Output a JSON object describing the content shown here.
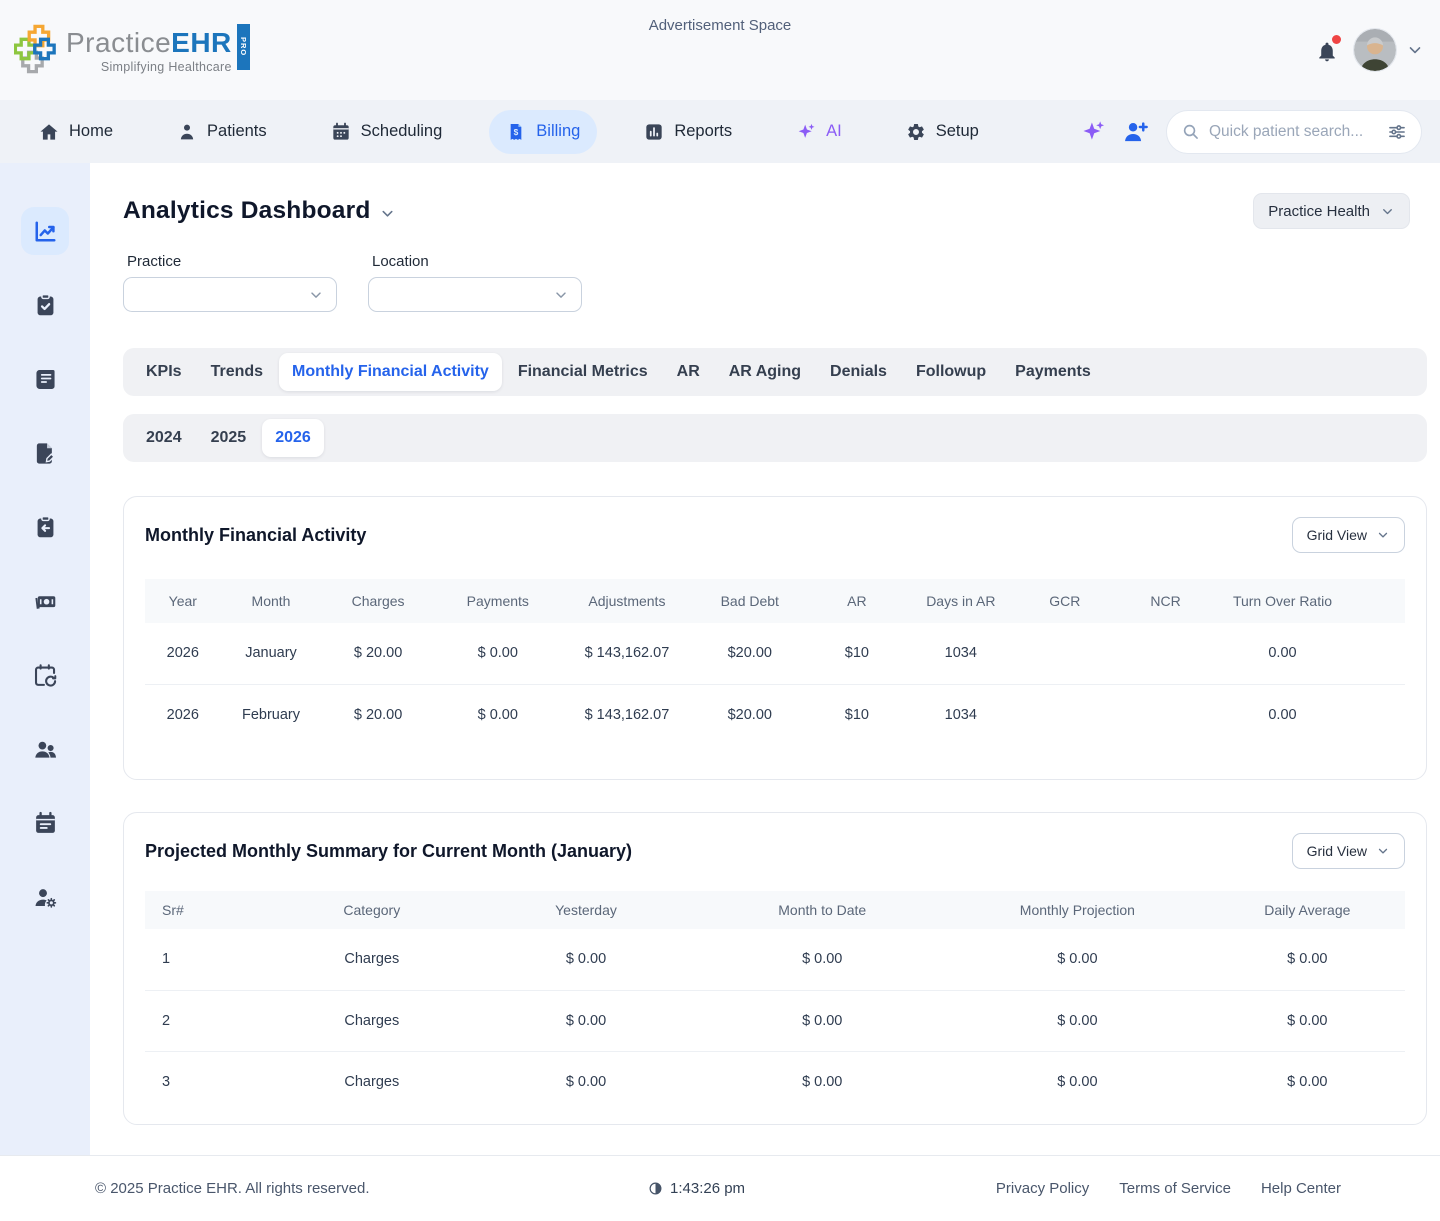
{
  "colors": {
    "accent": "#2563eb",
    "ai_purple": "#8b5cf6",
    "notification_red": "#ef4444",
    "logo_blue": "#1c75bc",
    "logo_green": "#8dc63f",
    "logo_orange": "#f5a733",
    "logo_gray": "#a7a9ac"
  },
  "header": {
    "advertisement": "Advertisement Space",
    "logo": {
      "name_primary": "Practice",
      "name_secondary": "EHR",
      "tagline": "Simplifying Healthcare",
      "badge": "PRO"
    }
  },
  "nav": {
    "items": [
      {
        "label": "Home",
        "icon": "home-icon",
        "active": false
      },
      {
        "label": "Patients",
        "icon": "patient-icon",
        "active": false
      },
      {
        "label": "Scheduling",
        "icon": "calendar-icon",
        "active": false
      },
      {
        "label": "Billing",
        "icon": "billing-receipt-icon",
        "active": true
      },
      {
        "label": "Reports",
        "icon": "bar-chart-icon",
        "active": false
      },
      {
        "label": "AI",
        "icon": "sparkle-icon",
        "active": false,
        "accent": "purple"
      },
      {
        "label": "Setup",
        "icon": "gear-icon",
        "active": false
      }
    ],
    "search": {
      "placeholder": "Quick patient search...",
      "value": ""
    }
  },
  "sidebar": {
    "items": [
      {
        "icon": "line-chart-icon",
        "active": true
      },
      {
        "icon": "clipboard-check-icon",
        "active": false
      },
      {
        "icon": "receipt-icon",
        "active": false
      },
      {
        "icon": "document-edit-icon",
        "active": false
      },
      {
        "icon": "clipboard-return-icon",
        "active": false
      },
      {
        "icon": "cash-icon",
        "active": false
      },
      {
        "icon": "calendar-history-icon",
        "active": false
      },
      {
        "icon": "users-icon",
        "active": false
      },
      {
        "icon": "calendar-event-icon",
        "active": false
      },
      {
        "icon": "user-gear-icon",
        "active": false
      }
    ]
  },
  "main": {
    "page_title": "Analytics Dashboard",
    "dashboard_selector": "Practice Health",
    "filters": {
      "practice_label": "Practice",
      "practice_value": "",
      "location_label": "Location",
      "location_value": ""
    },
    "tabs": [
      "KPIs",
      "Trends",
      "Monthly Financial Activity",
      "Financial Metrics",
      "AR",
      "AR Aging",
      "Denials",
      "Followup",
      "Payments"
    ],
    "active_tab": "Monthly Financial Activity",
    "years": [
      "2024",
      "2025",
      "2026"
    ],
    "active_year": "2026"
  },
  "monthly_table": {
    "title": "Monthly Financial Activity",
    "view_label": "Grid View",
    "columns": [
      "Year",
      "Month",
      "Charges",
      "Payments",
      "Adjustments",
      "Bad Debt",
      "AR",
      "Days in AR",
      "GCR",
      "NCR",
      "Turn Over Ratio"
    ],
    "rows": [
      [
        "2026",
        "January",
        "$ 20.00",
        "$ 0.00",
        "$ 143,162.07",
        "$20.00",
        "$10",
        "1034",
        "",
        "",
        "0.00"
      ],
      [
        "2026",
        "February",
        "$ 20.00",
        "$ 0.00",
        "$ 143,162.07",
        "$20.00",
        "$10",
        "1034",
        "",
        "",
        "0.00"
      ]
    ]
  },
  "projection_table": {
    "title": "Projected Monthly Summary for Current Month (January)",
    "view_label": "Grid View",
    "columns": [
      "Sr#",
      "Category",
      "Yesterday",
      "Month to Date",
      "Monthly Projection",
      "Daily Average"
    ],
    "rows": [
      [
        "1",
        "Charges",
        "$ 0.00",
        "$ 0.00",
        "$ 0.00",
        "$ 0.00"
      ],
      [
        "2",
        "Charges",
        "$ 0.00",
        "$ 0.00",
        "$ 0.00",
        "$ 0.00"
      ],
      [
        "3",
        "Charges",
        "$ 0.00",
        "$ 0.00",
        "$ 0.00",
        "$ 0.00"
      ]
    ]
  },
  "footer": {
    "copyright": "© 2025 Practice EHR. All rights reserved.",
    "time": "1:43:26 pm",
    "links": [
      "Privacy Policy",
      "Terms of Service",
      "Help Center"
    ]
  }
}
